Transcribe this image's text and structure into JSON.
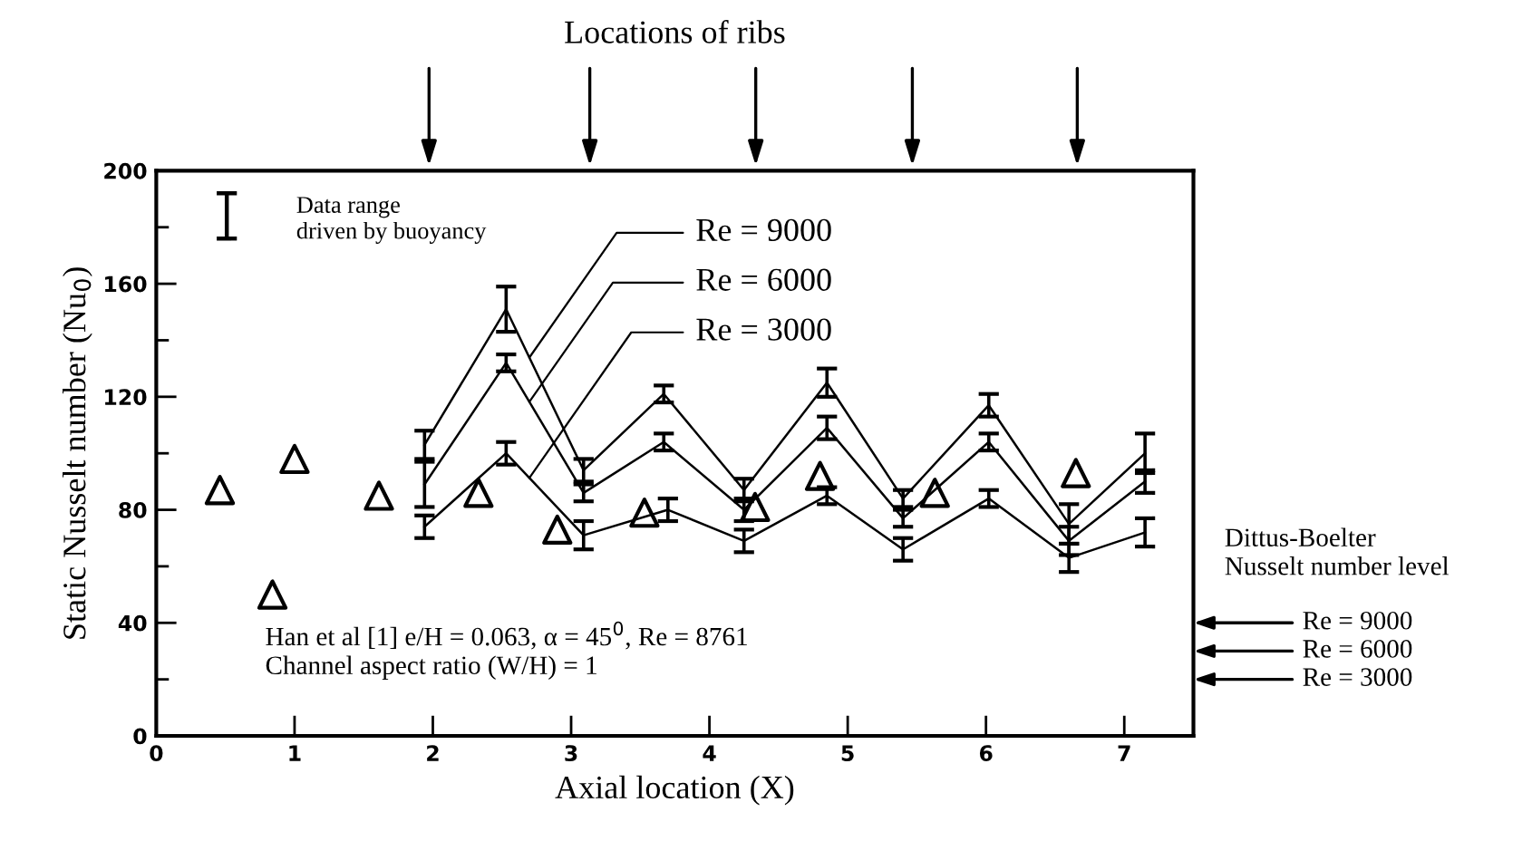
{
  "chart_data": {
    "type": "line",
    "xlabel": "Axial location (X)",
    "ylabel": "Static Nusselt number (Nu$_{0}$)",
    "xlim": [
      0,
      7.5
    ],
    "xticks": [
      0,
      1,
      2,
      3,
      4,
      5,
      6,
      7
    ],
    "ylim": [
      0,
      200
    ],
    "yticks": [
      0,
      {
        "value": 20,
        "label": null
      },
      40,
      {
        "value": 60,
        "label": null
      },
      80,
      {
        "value": 100,
        "label": null
      },
      120,
      {
        "value": 140,
        "label": null
      },
      160,
      {
        "value": 180,
        "label": null
      },
      200
    ],
    "grid": false,
    "line_style": "solid",
    "series": [
      {
        "name": "Re = 9000",
        "color": "#000000",
        "x": [
          1.94,
          2.53,
          3.09,
          3.67,
          4.25,
          4.85,
          5.4,
          6.02,
          6.6,
          7.15
        ],
        "values": [
          103,
          151,
          94,
          121,
          87,
          125,
          84,
          117,
          75,
          100
        ],
        "errors": [
          5,
          8,
          4,
          3,
          4,
          5,
          3,
          4,
          7,
          7
        ]
      },
      {
        "name": "Re = 6000",
        "color": "#000000",
        "x": [
          1.94,
          2.53,
          3.09,
          3.67,
          4.25,
          4.85,
          5.4,
          6.02,
          6.6,
          7.15
        ],
        "values": [
          89,
          132,
          86,
          104,
          80,
          109,
          77,
          104,
          69,
          90
        ],
        "errors": [
          8,
          3,
          3,
          3,
          4,
          4,
          3,
          3,
          5,
          4
        ]
      },
      {
        "name": "Re = 3000",
        "color": "#000000",
        "x": [
          1.94,
          2.53,
          3.09,
          3.7,
          4.25,
          4.85,
          5.4,
          6.02,
          6.6,
          7.15
        ],
        "values": [
          74,
          100,
          71,
          80,
          69,
          85,
          66,
          84,
          63,
          72
        ],
        "errors": [
          4,
          4,
          5,
          4,
          4,
          3,
          4,
          3,
          5,
          5
        ]
      },
      {
        "type": "scatter",
        "marker": "triangle",
        "color": "#000000",
        "x": [
          0.46,
          0.84,
          1.0,
          1.61,
          2.33,
          2.9,
          3.53,
          4.33,
          4.8,
          5.63,
          6.65
        ],
        "values": [
          87,
          50,
          98,
          85,
          86,
          73,
          79,
          81,
          92,
          86,
          93
        ]
      }
    ],
    "annotations": [
      "Data range\ndriven by buoyancy",
      "Han et al [1] e/H = 0.063, α = 45$^{0}$, Re = 8761\nChannel aspect ratio (W/H) = 1",
      "Dittus-Boelter\nNusselt number level",
      "Locations of ribs",
      "Re = 9000",
      "Re = 6000",
      "Re = 3000"
    ]
  }
}
